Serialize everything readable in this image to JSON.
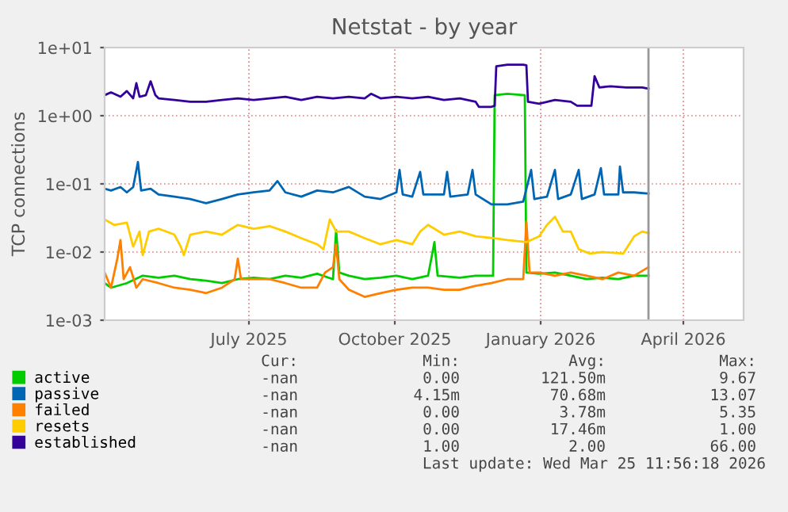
{
  "chart_data": {
    "type": "line",
    "title": "Netstat - by year",
    "ylabel": "TCP connections",
    "log": "y",
    "ylim": [
      0.001,
      10
    ],
    "yticks": [
      {
        "value": 0.001,
        "label": "1e-03"
      },
      {
        "value": 0.01,
        "label": "1e-02"
      },
      {
        "value": 0.1,
        "label": "1e-01"
      },
      {
        "value": 1,
        "label": "1e+00"
      },
      {
        "value": 10,
        "label": "1e+01"
      }
    ],
    "xlim": [
      "2025-04-16",
      "2026-05-24"
    ],
    "xticks": [
      {
        "value": "2025-07-16",
        "label": "July 2025"
      },
      {
        "value": "2025-10-16",
        "label": "October 2025"
      },
      {
        "value": "2026-01-16",
        "label": "January 2026"
      },
      {
        "value": "2026-04-16",
        "label": "April 2026"
      }
    ],
    "grid": true,
    "legend": "bottom",
    "ref_lines": [
      {
        "axis": "x",
        "value": "2026-03-25",
        "color": "#999999"
      }
    ],
    "series": [
      {
        "name": "active",
        "color": "#00cc00",
        "x": [
          "2025-04-16",
          "2025-04-20",
          "2025-04-30",
          "2025-05-10",
          "2025-05-20",
          "2025-05-30",
          "2025-06-09",
          "2025-06-19",
          "2025-06-29",
          "2025-07-09",
          "2025-07-19",
          "2025-07-29",
          "2025-08-08",
          "2025-08-18",
          "2025-08-28",
          "2025-09-07",
          "2025-09-09",
          "2025-09-11",
          "2025-09-17",
          "2025-09-27",
          "2025-10-07",
          "2025-10-17",
          "2025-10-27",
          "2025-11-06",
          "2025-11-10",
          "2025-11-12",
          "2025-11-26",
          "2025-12-06",
          "2025-12-17",
          "2025-12-18",
          "2025-12-26",
          "2026-01-06",
          "2026-01-07",
          "2026-01-15",
          "2026-01-25",
          "2026-02-04",
          "2026-02-14",
          "2026-02-24",
          "2026-03-06",
          "2026-03-16",
          "2026-03-25"
        ],
        "values": [
          0.0035,
          0.003,
          0.0035,
          0.0045,
          0.0042,
          0.0045,
          0.004,
          0.0038,
          0.0035,
          0.004,
          0.0042,
          0.004,
          0.0045,
          0.0042,
          0.0048,
          0.004,
          0.021,
          0.005,
          0.0045,
          0.004,
          0.0042,
          0.0045,
          0.004,
          0.0045,
          0.014,
          0.0045,
          0.0042,
          0.0045,
          0.0045,
          2.0,
          2.1,
          2.0,
          0.005,
          0.0048,
          0.005,
          0.0045,
          0.004,
          0.0042,
          0.004,
          0.0045,
          0.0045
        ]
      },
      {
        "name": "passive",
        "color": "#0066b3",
        "x": [
          "2025-04-16",
          "2025-04-20",
          "2025-04-26",
          "2025-04-30",
          "2025-05-04",
          "2025-05-07",
          "2025-05-09",
          "2025-05-15",
          "2025-05-20",
          "2025-05-30",
          "2025-06-09",
          "2025-06-19",
          "2025-06-29",
          "2025-07-09",
          "2025-07-19",
          "2025-07-29",
          "2025-08-03",
          "2025-08-08",
          "2025-08-18",
          "2025-08-28",
          "2025-09-07",
          "2025-09-17",
          "2025-09-27",
          "2025-10-07",
          "2025-10-17",
          "2025-10-19",
          "2025-10-21",
          "2025-10-27",
          "2025-11-01",
          "2025-11-03",
          "2025-11-16",
          "2025-11-18",
          "2025-11-20",
          "2025-12-01",
          "2025-12-04",
          "2025-12-06",
          "2025-12-16",
          "2025-12-26",
          "2026-01-05",
          "2026-01-10",
          "2026-01-12",
          "2026-01-20",
          "2026-01-25",
          "2026-01-27",
          "2026-02-04",
          "2026-02-09",
          "2026-02-11",
          "2026-02-19",
          "2026-02-23",
          "2026-02-25",
          "2026-03-06",
          "2026-03-07",
          "2026-03-09",
          "2026-03-16",
          "2026-03-25"
        ],
        "values": [
          0.085,
          0.08,
          0.09,
          0.075,
          0.09,
          0.21,
          0.08,
          0.085,
          0.07,
          0.065,
          0.06,
          0.052,
          0.06,
          0.07,
          0.075,
          0.08,
          0.11,
          0.075,
          0.065,
          0.08,
          0.075,
          0.09,
          0.065,
          0.06,
          0.075,
          0.16,
          0.07,
          0.065,
          0.15,
          0.07,
          0.07,
          0.15,
          0.065,
          0.07,
          0.16,
          0.07,
          0.05,
          0.05,
          0.055,
          0.16,
          0.06,
          0.065,
          0.16,
          0.06,
          0.07,
          0.16,
          0.06,
          0.07,
          0.17,
          0.07,
          0.07,
          0.18,
          0.075,
          0.075,
          0.072
        ]
      },
      {
        "name": "failed",
        "color": "#ff8000",
        "x": [
          "2025-04-16",
          "2025-04-20",
          "2025-04-24",
          "2025-04-26",
          "2025-04-28",
          "2025-05-02",
          "2025-05-06",
          "2025-05-10",
          "2025-05-20",
          "2025-05-30",
          "2025-06-09",
          "2025-06-19",
          "2025-06-29",
          "2025-07-07",
          "2025-07-09",
          "2025-07-11",
          "2025-07-19",
          "2025-07-29",
          "2025-08-08",
          "2025-08-18",
          "2025-08-28",
          "2025-09-02",
          "2025-09-07",
          "2025-09-09",
          "2025-09-11",
          "2025-09-17",
          "2025-09-27",
          "2025-10-07",
          "2025-10-17",
          "2025-10-27",
          "2025-11-06",
          "2025-11-16",
          "2025-11-26",
          "2025-12-06",
          "2025-12-16",
          "2025-12-26",
          "2026-01-05",
          "2026-01-07",
          "2026-01-09",
          "2026-01-15",
          "2026-01-25",
          "2026-02-04",
          "2026-02-14",
          "2026-02-24",
          "2026-03-06",
          "2026-03-16",
          "2026-03-25"
        ],
        "values": [
          0.005,
          0.003,
          0.008,
          0.015,
          0.004,
          0.006,
          0.003,
          0.004,
          0.0035,
          0.003,
          0.0028,
          0.0025,
          0.003,
          0.004,
          0.008,
          0.004,
          0.004,
          0.004,
          0.0035,
          0.003,
          0.003,
          0.005,
          0.006,
          0.013,
          0.004,
          0.0028,
          0.0022,
          0.0025,
          0.0028,
          0.003,
          0.003,
          0.0028,
          0.0028,
          0.0032,
          0.0035,
          0.004,
          0.004,
          0.028,
          0.005,
          0.005,
          0.0045,
          0.005,
          0.0045,
          0.004,
          0.005,
          0.0045,
          0.006
        ]
      },
      {
        "name": "resets",
        "color": "#ffcc00",
        "x": [
          "2025-04-16",
          "2025-04-22",
          "2025-04-30",
          "2025-05-04",
          "2025-05-08",
          "2025-05-10",
          "2025-05-14",
          "2025-05-20",
          "2025-05-30",
          "2025-06-03",
          "2025-06-05",
          "2025-06-09",
          "2025-06-19",
          "2025-06-29",
          "2025-07-09",
          "2025-07-19",
          "2025-07-29",
          "2025-08-08",
          "2025-08-18",
          "2025-08-28",
          "2025-09-01",
          "2025-09-05",
          "2025-09-09",
          "2025-09-17",
          "2025-09-27",
          "2025-10-07",
          "2025-10-17",
          "2025-10-27",
          "2025-11-01",
          "2025-11-06",
          "2025-11-16",
          "2025-11-26",
          "2025-12-06",
          "2025-12-17",
          "2025-12-26",
          "2026-01-07",
          "2026-01-15",
          "2026-01-20",
          "2026-01-25",
          "2026-01-30",
          "2026-02-04",
          "2026-02-09",
          "2026-02-16",
          "2026-02-24",
          "2026-03-09",
          "2026-03-16",
          "2026-03-21",
          "2026-03-25"
        ],
        "values": [
          0.03,
          0.025,
          0.027,
          0.012,
          0.02,
          0.009,
          0.02,
          0.022,
          0.018,
          0.012,
          0.009,
          0.018,
          0.02,
          0.018,
          0.025,
          0.022,
          0.024,
          0.02,
          0.016,
          0.013,
          0.011,
          0.03,
          0.02,
          0.02,
          0.016,
          0.013,
          0.015,
          0.013,
          0.02,
          0.025,
          0.018,
          0.02,
          0.017,
          0.016,
          0.015,
          0.014,
          0.017,
          0.025,
          0.033,
          0.02,
          0.02,
          0.011,
          0.0095,
          0.01,
          0.0095,
          0.017,
          0.02,
          0.019
        ]
      },
      {
        "name": "established",
        "color": "#330099",
        "x": [
          "2025-04-16",
          "2025-04-20",
          "2025-04-26",
          "2025-04-30",
          "2025-05-04",
          "2025-05-06",
          "2025-05-08",
          "2025-05-12",
          "2025-05-15",
          "2025-05-18",
          "2025-05-20",
          "2025-05-30",
          "2025-06-09",
          "2025-06-19",
          "2025-06-29",
          "2025-07-09",
          "2025-07-19",
          "2025-07-29",
          "2025-08-08",
          "2025-08-18",
          "2025-08-28",
          "2025-09-07",
          "2025-09-17",
          "2025-09-27",
          "2025-10-01",
          "2025-10-07",
          "2025-10-17",
          "2025-10-27",
          "2025-11-06",
          "2025-11-16",
          "2025-11-26",
          "2025-12-06",
          "2025-12-08",
          "2025-12-16",
          "2025-12-18",
          "2025-12-19",
          "2025-12-26",
          "2026-01-05",
          "2026-01-07",
          "2026-01-08",
          "2026-01-15",
          "2026-01-25",
          "2026-02-04",
          "2026-02-08",
          "2026-02-17",
          "2026-02-19",
          "2026-02-22",
          "2026-03-01",
          "2026-03-11",
          "2026-03-21",
          "2026-03-25"
        ],
        "values": [
          2.0,
          2.2,
          1.9,
          2.3,
          1.8,
          3.0,
          1.9,
          2.0,
          3.2,
          2.0,
          1.8,
          1.7,
          1.6,
          1.6,
          1.7,
          1.8,
          1.7,
          1.8,
          1.9,
          1.7,
          1.9,
          1.8,
          1.9,
          1.8,
          2.1,
          1.8,
          1.9,
          1.8,
          1.9,
          1.7,
          1.8,
          1.6,
          1.35,
          1.35,
          1.4,
          5.3,
          5.6,
          5.6,
          5.5,
          1.6,
          1.5,
          1.7,
          1.6,
          1.4,
          1.4,
          3.8,
          2.6,
          2.7,
          2.6,
          2.6,
          2.5
        ]
      }
    ],
    "annotations": [
      "Cur:",
      "Min:",
      "Avg:",
      "Max:",
      "-nan",
      "0.00",
      "121.50m",
      "9.67",
      "-nan",
      "4.15m",
      "70.68m",
      "13.07",
      "-nan",
      "0.00",
      "3.78m",
      "5.35",
      "-nan",
      "0.00",
      "17.46m",
      "1.00",
      "-nan",
      "1.00",
      "2.00",
      "66.00",
      "Last update: Wed Mar 25 11:56:18 2026"
    ]
  }
}
